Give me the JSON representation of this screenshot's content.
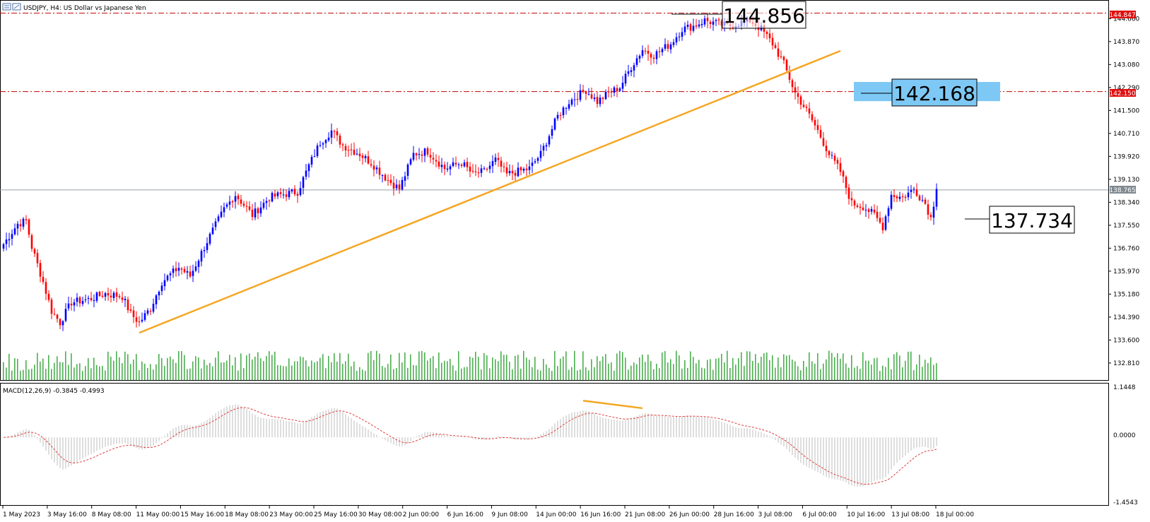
{
  "header": {
    "title": "USDJPY, H4:  US Dollar vs Japanese Yen"
  },
  "macd_header": "MACD(12,26,9) -0.3845 -0.4993",
  "callouts": {
    "high": "144.856",
    "mid": "142.168",
    "low": "137.734"
  },
  "price_tags": {
    "resistance_top": "144.847",
    "resistance_mid": "142.150",
    "current": "138.765"
  },
  "colors": {
    "bull": "#0000ff",
    "bear": "#ff0000",
    "volume": "#4caf50",
    "trendline": "#f5a623",
    "level": "#c00000",
    "zone": "#7ec8f5",
    "macd_hist": "#c8c8c8",
    "macd_signal": "#e04040"
  },
  "chart_data": [
    {
      "type": "candlestick",
      "title": "USDJPY, H4: US Dollar vs Japanese Yen",
      "ylim": [
        132.2,
        145.3
      ],
      "price_axis_ticks": [
        "144.660",
        "143.870",
        "143.080",
        "142.290",
        "141.500",
        "140.710",
        "139.920",
        "139.130",
        "138.340",
        "137.550",
        "136.760",
        "135.970",
        "135.180",
        "134.390",
        "133.600",
        "132.810"
      ],
      "time_axis_labels": [
        "1 May 2023",
        "3 May 16:00",
        "8 May 08:00",
        "11 May 00:00",
        "15 May 16:00",
        "18 May 08:00",
        "23 May 00:00",
        "25 May 16:00",
        "30 May 08:00",
        "2 Jun 00:00",
        "6 Jun 16:00",
        "9 Jun 08:00",
        "14 Jun 00:00",
        "16 Jun 16:00",
        "21 Jun 08:00",
        "26 Jun 00:00",
        "28 Jun 16:00",
        "3 Jul 08:00",
        "6 Jul 00:00",
        "10 Jul 16:00",
        "13 Jul 08:00",
        "18 Jul 00:00"
      ],
      "anchor_closes": [
        [
          0,
          136.9
        ],
        [
          5,
          137.6
        ],
        [
          8,
          137.7
        ],
        [
          10,
          136.8
        ],
        [
          14,
          135.6
        ],
        [
          17,
          134.6
        ],
        [
          20,
          134.2
        ],
        [
          24,
          134.9
        ],
        [
          30,
          135.0
        ],
        [
          36,
          135.2
        ],
        [
          42,
          135.1
        ],
        [
          45,
          134.5
        ],
        [
          48,
          134.2
        ],
        [
          52,
          134.7
        ],
        [
          56,
          135.6
        ],
        [
          62,
          136.1
        ],
        [
          66,
          135.8
        ],
        [
          72,
          137.0
        ],
        [
          78,
          138.1
        ],
        [
          82,
          138.6
        ],
        [
          88,
          137.9
        ],
        [
          94,
          138.5
        ],
        [
          98,
          138.6
        ],
        [
          104,
          138.7
        ],
        [
          108,
          139.6
        ],
        [
          112,
          140.4
        ],
        [
          116,
          140.8
        ],
        [
          120,
          140.3
        ],
        [
          126,
          140.0
        ],
        [
          130,
          139.7
        ],
        [
          136,
          139.1
        ],
        [
          140,
          138.8
        ],
        [
          145,
          140.0
        ],
        [
          150,
          140.1
        ],
        [
          156,
          139.5
        ],
        [
          162,
          139.7
        ],
        [
          166,
          139.3
        ],
        [
          170,
          139.4
        ],
        [
          174,
          139.8
        ],
        [
          178,
          139.3
        ],
        [
          182,
          139.4
        ],
        [
          186,
          139.5
        ],
        [
          190,
          140.0
        ],
        [
          196,
          141.3
        ],
        [
          200,
          141.8
        ],
        [
          206,
          142.2
        ],
        [
          210,
          141.8
        ],
        [
          214,
          142.1
        ],
        [
          218,
          142.3
        ],
        [
          222,
          143.0
        ],
        [
          226,
          143.6
        ],
        [
          230,
          143.4
        ],
        [
          236,
          143.8
        ],
        [
          240,
          144.3
        ],
        [
          244,
          144.4
        ],
        [
          248,
          144.6
        ],
        [
          252,
          144.5
        ],
        [
          256,
          144.4
        ],
        [
          260,
          144.5
        ],
        [
          264,
          144.6
        ],
        [
          268,
          144.3
        ],
        [
          272,
          143.8
        ],
        [
          276,
          143.1
        ],
        [
          280,
          142.1
        ],
        [
          284,
          141.5
        ],
        [
          288,
          140.8
        ],
        [
          292,
          140.0
        ],
        [
          296,
          139.4
        ],
        [
          300,
          138.3
        ],
        [
          304,
          138.2
        ],
        [
          308,
          137.9
        ],
        [
          311,
          137.5
        ],
        [
          314,
          138.6
        ],
        [
          318,
          138.5
        ],
        [
          322,
          138.8
        ],
        [
          326,
          138.3
        ],
        [
          328,
          137.8
        ],
        [
          330,
          138.8
        ]
      ],
      "volume_range": [
        0,
        30
      ],
      "horizontal_levels": [
        144.847,
        142.15
      ],
      "current_price": 138.765,
      "trendline": {
        "from": {
          "bar": 48,
          "price": 133.85
        },
        "to": {
          "bar": 296,
          "price": 143.55
        }
      },
      "zone": {
        "top": 142.48,
        "bottom": 141.82
      }
    },
    {
      "type": "macd",
      "title": "MACD(12,26,9) -0.3845 -0.4993",
      "ylim": [
        -1.4543,
        1.1448
      ],
      "axis_ticks": [
        "1.1448",
        "0.0000",
        "-1.4543"
      ],
      "main_last": -0.3845,
      "signal_last": -0.4993
    }
  ]
}
